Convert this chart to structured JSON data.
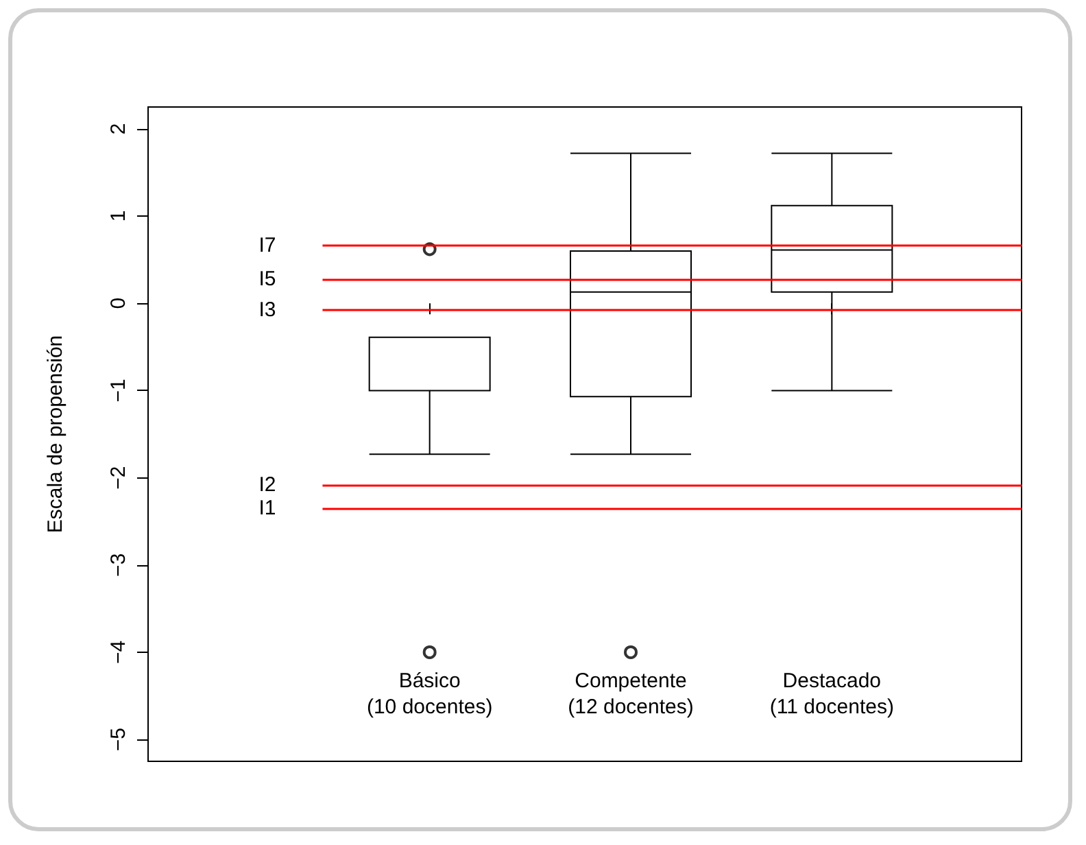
{
  "chart_data": {
    "type": "box",
    "ylabel": "Escala de propensión",
    "categories": [
      "Básico\n(10 docentes)",
      "Competente\n(12 docentes)",
      "Destacado\n(11 docentes)"
    ],
    "boxes": [
      {
        "low": -1.73,
        "q1": -1.0,
        "median": -0.39,
        "q3": -0.39,
        "high": -0.39,
        "outliers": [
          0.62,
          -4
        ]
      },
      {
        "low": -1.73,
        "q1": -1.07,
        "median": 0.13,
        "q3": 0.6,
        "high": 1.72,
        "outliers": [
          -4
        ]
      },
      {
        "low": -1.0,
        "q1": 0.13,
        "median": 0.61,
        "q3": 1.12,
        "high": 1.72
      }
    ],
    "color": "#000000",
    "ylim": [
      -5.25,
      2.25
    ],
    "yticks": [
      -5,
      -4,
      -3,
      -2,
      -1,
      0,
      1,
      2
    ],
    "ref_lines": [
      {
        "axis": "y",
        "value": 0.66,
        "label": "I7",
        "color": "#ff0000"
      },
      {
        "axis": "y",
        "value": 0.28,
        "label": "I5",
        "color": "#ff0000"
      },
      {
        "axis": "y",
        "value": -0.08,
        "label": "I3",
        "color": "#ff0000"
      },
      {
        "axis": "y",
        "value": -2.08,
        "label": "I2",
        "color": "#ff0000"
      },
      {
        "axis": "y",
        "value": -2.35,
        "label": "I1",
        "color": "#ff0000"
      }
    ],
    "grid": false
  }
}
